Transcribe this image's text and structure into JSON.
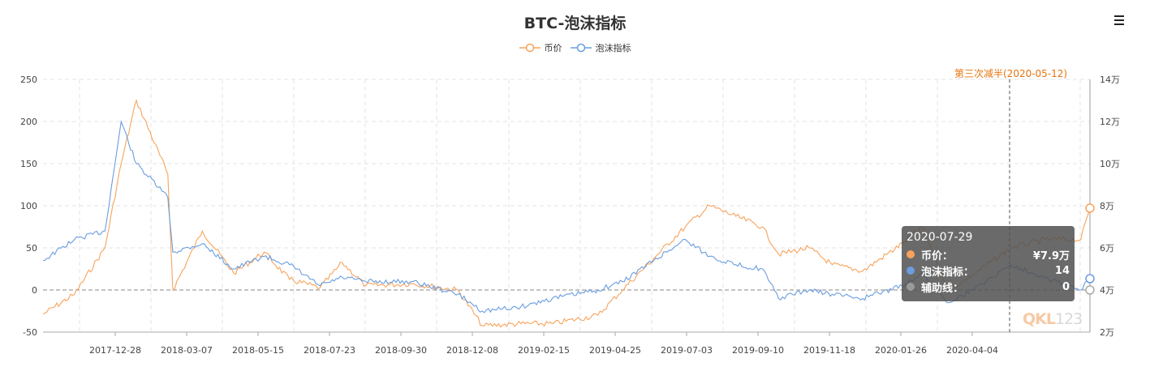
{
  "title": "BTC-泡沫指标",
  "toolbar": {
    "menu_icon": "hamburger-menu-icon"
  },
  "legend": [
    {
      "label": "币价",
      "color": "#f7a35c"
    },
    {
      "label": "泡沫指标",
      "color": "#6b9de0"
    }
  ],
  "markline": {
    "label": "第三次减半(2020-05-12)",
    "color": "#e7740f"
  },
  "tooltip": {
    "date": "2020-07-29",
    "rows": [
      {
        "name": "币价：",
        "value": "¥7.9万",
        "color": "#f7a35c"
      },
      {
        "name": "泡沫指标：",
        "value": "14",
        "color": "#6b9de0"
      },
      {
        "name": "辅助线：",
        "value": "0",
        "color": "#9a9a9a"
      }
    ]
  },
  "watermark": {
    "part1": "QKL",
    "part2": "123"
  },
  "chart_data": {
    "type": "line",
    "title": "BTC-泡沫指标",
    "x_tick_labels": [
      "2017-12-28",
      "2018-03-07",
      "2018-05-15",
      "2018-07-23",
      "2018-09-30",
      "2018-12-08",
      "2019-02-15",
      "2019-04-25",
      "2019-07-03",
      "2019-09-10",
      "2019-11-18",
      "2020-01-26",
      "2020-04-04"
    ],
    "y_left": {
      "label": "泡沫指标",
      "ticks": [
        "250",
        "200",
        "150",
        "100",
        "50",
        "0",
        "-50"
      ],
      "range": [
        -50,
        250
      ]
    },
    "y_right": {
      "label": "币价",
      "ticks": [
        "14万",
        "12万",
        "10万",
        "8万",
        "6万",
        "4万",
        "2万"
      ],
      "range": [
        20000,
        140000
      ]
    },
    "grid": true,
    "legend_position": "top",
    "reference_line": {
      "name": "辅助线",
      "value": 0
    },
    "vertical_marker": {
      "label": "第三次减半(2020-05-12)",
      "date": "2020-05-12"
    },
    "x_dates": [
      "2017-10-01",
      "2017-11-01",
      "2017-12-01",
      "2017-12-17",
      "2018-01-01",
      "2018-02-01",
      "2018-02-06",
      "2018-03-07",
      "2018-04-07",
      "2018-05-07",
      "2018-06-01",
      "2018-07-01",
      "2018-07-23",
      "2018-08-15",
      "2018-09-30",
      "2018-11-14",
      "2018-12-08",
      "2019-01-15",
      "2019-02-15",
      "2019-04-01",
      "2019-04-25",
      "2019-05-26",
      "2019-06-26",
      "2019-07-20",
      "2019-08-15",
      "2019-09-10",
      "2019-09-26",
      "2019-10-26",
      "2019-11-18",
      "2019-12-18",
      "2020-01-26",
      "2020-02-14",
      "2020-03-12",
      "2020-04-04",
      "2020-05-12",
      "2020-06-15",
      "2020-07-20",
      "2020-07-29"
    ],
    "series": [
      {
        "name": "币价",
        "color": "#f7a35c",
        "unit": "CNY",
        "axis": "right",
        "values": [
          28500,
          38000,
          60000,
          100000,
          130000,
          95000,
          40000,
          68000,
          48000,
          58000,
          45000,
          41000,
          53000,
          42000,
          43000,
          40000,
          23000,
          24000,
          24000,
          28000,
          40000,
          55000,
          70000,
          80000,
          75000,
          70000,
          57000,
          60000,
          52000,
          49000,
          62000,
          70000,
          40000,
          47000,
          60000,
          64000,
          64000,
          79000
        ]
      },
      {
        "name": "泡沫指标",
        "color": "#6b9de0",
        "axis": "left",
        "values": [
          35,
          60,
          70,
          200,
          150,
          110,
          45,
          55,
          25,
          40,
          30,
          5,
          15,
          10,
          10,
          -5,
          -25,
          -20,
          -10,
          0,
          10,
          35,
          60,
          40,
          30,
          25,
          -10,
          0,
          -5,
          -10,
          5,
          20,
          -15,
          0,
          30,
          15,
          0,
          14
        ]
      },
      {
        "name": "辅助线",
        "color": "#9a9a9a",
        "axis": "left",
        "values": "constant 0"
      }
    ]
  }
}
